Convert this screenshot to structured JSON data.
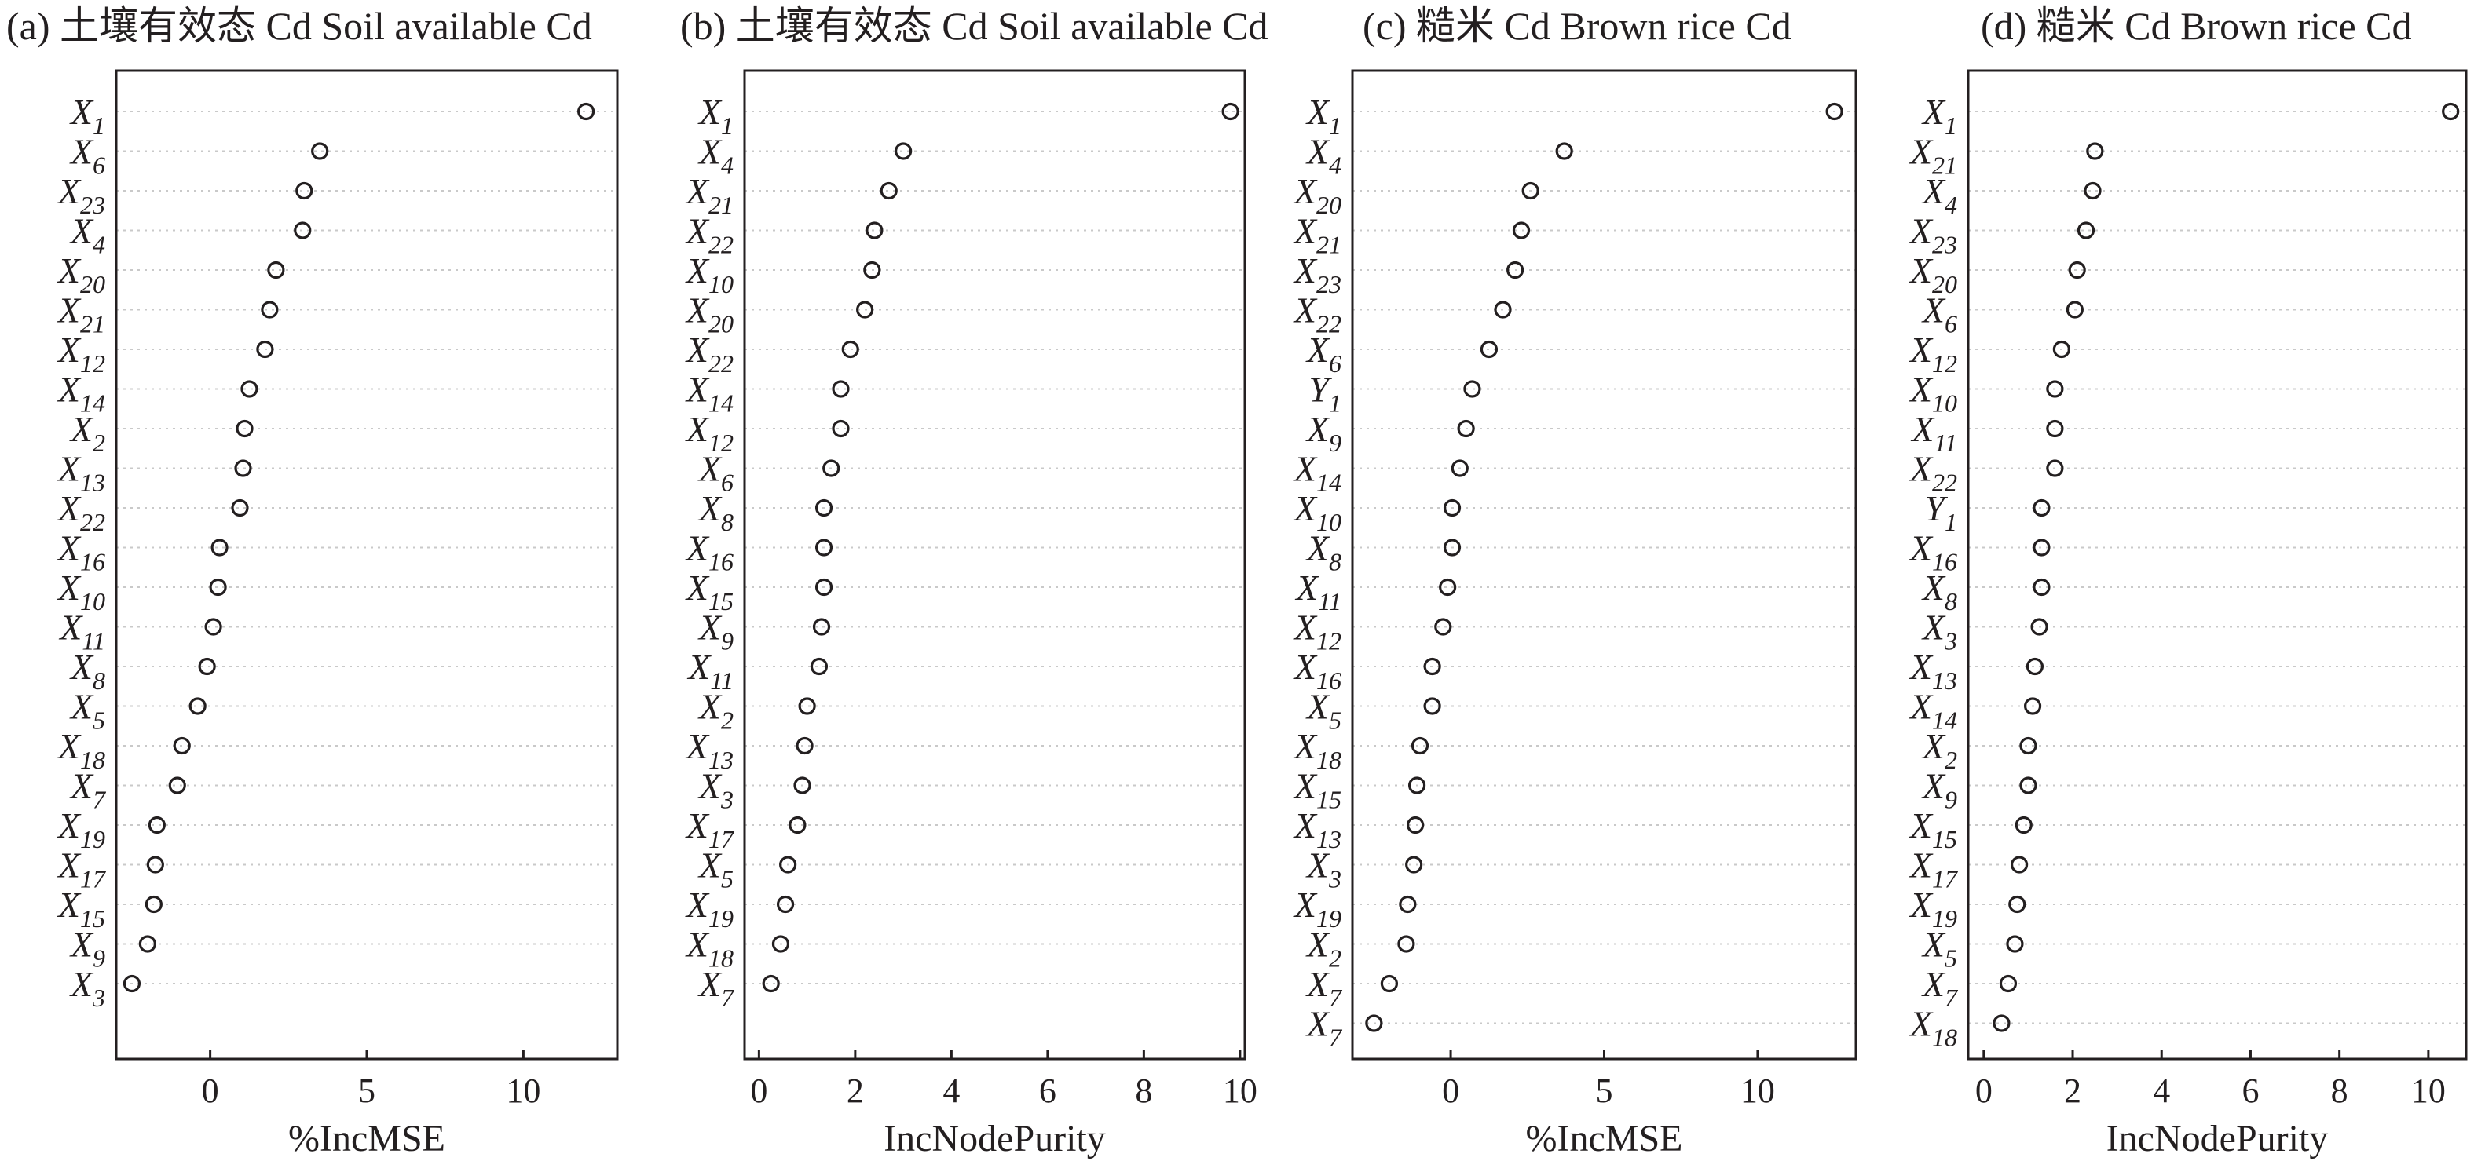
{
  "chart_data": [
    {
      "type": "scatter",
      "panel": "(a)",
      "title": "(a) 土壤有效态 Cd Soil available Cd",
      "xlabel": "%IncMSE",
      "xlim": [
        -3,
        13
      ],
      "xticks": [
        "0",
        "5",
        "10"
      ],
      "xtick_values": [
        0,
        5,
        10
      ],
      "grid": "horizontal dotted",
      "points": [
        {
          "var": "X",
          "sub": "1",
          "x": 12.0
        },
        {
          "var": "X",
          "sub": "6",
          "x": 3.5
        },
        {
          "var": "X",
          "sub": "23",
          "x": 3.0
        },
        {
          "var": "X",
          "sub": "4",
          "x": 2.95
        },
        {
          "var": "X",
          "sub": "20",
          "x": 2.1
        },
        {
          "var": "X",
          "sub": "21",
          "x": 1.9
        },
        {
          "var": "X",
          "sub": "12",
          "x": 1.75
        },
        {
          "var": "X",
          "sub": "14",
          "x": 1.25
        },
        {
          "var": "X",
          "sub": "2",
          "x": 1.1
        },
        {
          "var": "X",
          "sub": "13",
          "x": 1.05
        },
        {
          "var": "X",
          "sub": "22",
          "x": 0.95
        },
        {
          "var": "X",
          "sub": "16",
          "x": 0.3
        },
        {
          "var": "X",
          "sub": "10",
          "x": 0.25
        },
        {
          "var": "X",
          "sub": "11",
          "x": 0.1
        },
        {
          "var": "X",
          "sub": "8",
          "x": -0.1
        },
        {
          "var": "X",
          "sub": "5",
          "x": -0.4
        },
        {
          "var": "X",
          "sub": "18",
          "x": -0.9
        },
        {
          "var": "X",
          "sub": "7",
          "x": -1.05
        },
        {
          "var": "X",
          "sub": "19",
          "x": -1.7
        },
        {
          "var": "X",
          "sub": "17",
          "x": -1.75
        },
        {
          "var": "X",
          "sub": "15",
          "x": -1.8
        },
        {
          "var": "X",
          "sub": "9",
          "x": -2.0
        },
        {
          "var": "X",
          "sub": "3",
          "x": -2.5
        }
      ]
    },
    {
      "type": "scatter",
      "panel": "(b)",
      "title": "(b) 土壤有效态 Cd Soil available Cd",
      "xlabel": "IncNodePurity",
      "xlim": [
        -0.3,
        10.1
      ],
      "xticks": [
        "0",
        "2",
        "4",
        "6",
        "8",
        "10"
      ],
      "xtick_values": [
        0,
        2,
        4,
        6,
        8,
        10
      ],
      "grid": "horizontal dotted",
      "points": [
        {
          "var": "X",
          "sub": "1",
          "x": 9.8
        },
        {
          "var": "X",
          "sub": "4",
          "x": 3.0
        },
        {
          "var": "X",
          "sub": "21",
          "x": 2.7
        },
        {
          "var": "X",
          "sub": "22",
          "x": 2.4
        },
        {
          "var": "X",
          "sub": "10",
          "x": 2.35
        },
        {
          "var": "X",
          "sub": "20",
          "x": 2.2
        },
        {
          "var": "X",
          "sub": "22",
          "x": 1.9
        },
        {
          "var": "X",
          "sub": "14",
          "x": 1.7
        },
        {
          "var": "X",
          "sub": "12",
          "x": 1.7
        },
        {
          "var": "X",
          "sub": "6",
          "x": 1.5
        },
        {
          "var": "X",
          "sub": "8",
          "x": 1.35
        },
        {
          "var": "X",
          "sub": "16",
          "x": 1.35
        },
        {
          "var": "X",
          "sub": "15",
          "x": 1.35
        },
        {
          "var": "X",
          "sub": "9",
          "x": 1.3
        },
        {
          "var": "X",
          "sub": "11",
          "x": 1.25
        },
        {
          "var": "X",
          "sub": "2",
          "x": 1.0
        },
        {
          "var": "X",
          "sub": "13",
          "x": 0.95
        },
        {
          "var": "X",
          "sub": "3",
          "x": 0.9
        },
        {
          "var": "X",
          "sub": "17",
          "x": 0.8
        },
        {
          "var": "X",
          "sub": "5",
          "x": 0.6
        },
        {
          "var": "X",
          "sub": "19",
          "x": 0.55
        },
        {
          "var": "X",
          "sub": "18",
          "x": 0.45
        },
        {
          "var": "X",
          "sub": "7",
          "x": 0.25
        }
      ]
    },
    {
      "type": "scatter",
      "panel": "(c)",
      "title": "(c) 糙米 Cd Brown rice Cd",
      "xlabel": "%IncMSE",
      "xlim": [
        -3.2,
        13.2
      ],
      "xticks": [
        "0",
        "5",
        "10"
      ],
      "xtick_values": [
        0,
        5,
        10
      ],
      "grid": "horizontal dotted",
      "points": [
        {
          "var": "X",
          "sub": "1",
          "x": 12.5
        },
        {
          "var": "X",
          "sub": "4",
          "x": 3.7
        },
        {
          "var": "X",
          "sub": "20",
          "x": 2.6
        },
        {
          "var": "X",
          "sub": "21",
          "x": 2.3
        },
        {
          "var": "X",
          "sub": "23",
          "x": 2.1
        },
        {
          "var": "X",
          "sub": "22",
          "x": 1.7
        },
        {
          "var": "X",
          "sub": "6",
          "x": 1.25
        },
        {
          "var": "Y",
          "sub": "1",
          "x": 0.7
        },
        {
          "var": "X",
          "sub": "9",
          "x": 0.5
        },
        {
          "var": "X",
          "sub": "14",
          "x": 0.3
        },
        {
          "var": "X",
          "sub": "10",
          "x": 0.05
        },
        {
          "var": "X",
          "sub": "8",
          "x": 0.05
        },
        {
          "var": "X",
          "sub": "11",
          "x": -0.1
        },
        {
          "var": "X",
          "sub": "12",
          "x": -0.25
        },
        {
          "var": "X",
          "sub": "16",
          "x": -0.6
        },
        {
          "var": "X",
          "sub": "5",
          "x": -0.6
        },
        {
          "var": "X",
          "sub": "18",
          "x": -1.0
        },
        {
          "var": "X",
          "sub": "15",
          "x": -1.1
        },
        {
          "var": "X",
          "sub": "13",
          "x": -1.15
        },
        {
          "var": "X",
          "sub": "3",
          "x": -1.2
        },
        {
          "var": "X",
          "sub": "19",
          "x": -1.4
        },
        {
          "var": "X",
          "sub": "2",
          "x": -1.45
        },
        {
          "var": "X",
          "sub": "7",
          "x": -2.0
        },
        {
          "var": "X",
          "sub": "7",
          "x": -2.5
        }
      ]
    },
    {
      "type": "scatter",
      "panel": "(d)",
      "title": "(d) 糙米 Cd Brown rice Cd",
      "xlabel": "IncNodePurity",
      "xlim": [
        -0.35,
        10.85
      ],
      "xticks": [
        "0",
        "2",
        "4",
        "6",
        "8",
        "10"
      ],
      "xtick_values": [
        0,
        2,
        4,
        6,
        8,
        10
      ],
      "grid": "horizontal dotted",
      "points": [
        {
          "var": "X",
          "sub": "1",
          "x": 10.5
        },
        {
          "var": "X",
          "sub": "21",
          "x": 2.5
        },
        {
          "var": "X",
          "sub": "4",
          "x": 2.45
        },
        {
          "var": "X",
          "sub": "23",
          "x": 2.3
        },
        {
          "var": "X",
          "sub": "20",
          "x": 2.1
        },
        {
          "var": "X",
          "sub": "6",
          "x": 2.05
        },
        {
          "var": "X",
          "sub": "12",
          "x": 1.75
        },
        {
          "var": "X",
          "sub": "10",
          "x": 1.6
        },
        {
          "var": "X",
          "sub": "11",
          "x": 1.6
        },
        {
          "var": "X",
          "sub": "22",
          "x": 1.6
        },
        {
          "var": "Y",
          "sub": "1",
          "x": 1.3
        },
        {
          "var": "X",
          "sub": "16",
          "x": 1.3
        },
        {
          "var": "X",
          "sub": "8",
          "x": 1.3
        },
        {
          "var": "X",
          "sub": "3",
          "x": 1.25
        },
        {
          "var": "X",
          "sub": "13",
          "x": 1.15
        },
        {
          "var": "X",
          "sub": "14",
          "x": 1.1
        },
        {
          "var": "X",
          "sub": "2",
          "x": 1.0
        },
        {
          "var": "X",
          "sub": "9",
          "x": 1.0
        },
        {
          "var": "X",
          "sub": "15",
          "x": 0.9
        },
        {
          "var": "X",
          "sub": "17",
          "x": 0.8
        },
        {
          "var": "X",
          "sub": "19",
          "x": 0.75
        },
        {
          "var": "X",
          "sub": "5",
          "x": 0.7
        },
        {
          "var": "X",
          "sub": "7",
          "x": 0.55
        },
        {
          "var": "X",
          "sub": "18",
          "x": 0.4
        }
      ]
    }
  ]
}
